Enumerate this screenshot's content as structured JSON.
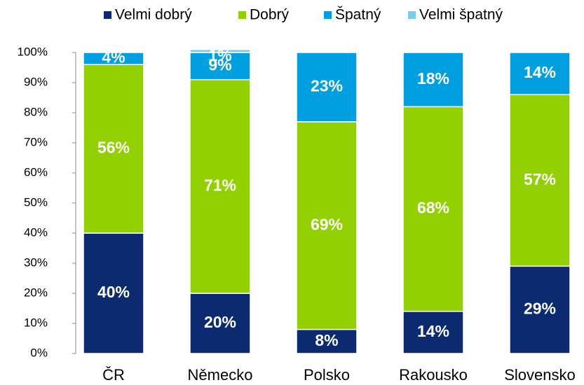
{
  "chart_data": {
    "type": "stacked_bar",
    "categories": [
      "ČR",
      "Německo",
      "Polsko",
      "Rakousko",
      "Slovensko"
    ],
    "series": [
      {
        "name": "Velmi dobrý",
        "color": "#0b2a70",
        "values": [
          40,
          20,
          8,
          14,
          29
        ],
        "value_labels": [
          "40%",
          "20%",
          "8%",
          "14%",
          "29%"
        ]
      },
      {
        "name": "Dobrý",
        "color": "#92d000",
        "values": [
          56,
          71,
          69,
          68,
          57
        ],
        "value_labels": [
          "56%",
          "71%",
          "69%",
          "68%",
          "57%"
        ]
      },
      {
        "name": "Špatný",
        "color": "#00a0e0",
        "values": [
          4,
          9,
          23,
          18,
          14
        ],
        "value_labels": [
          "4%",
          "9%",
          "23%",
          "18%",
          "14%"
        ]
      },
      {
        "name": "Velmi špatný",
        "color": "#7ccbea",
        "values": [
          0,
          1,
          0,
          0,
          0
        ],
        "value_labels": [
          null,
          "1%",
          null,
          null,
          null
        ]
      }
    ],
    "ylim": [
      0,
      100
    ],
    "yticks": [
      {
        "value": 0,
        "label": "0%"
      },
      {
        "value": 10,
        "label": "10%"
      },
      {
        "value": 20,
        "label": "20%"
      },
      {
        "value": 30,
        "label": "30%"
      },
      {
        "value": 40,
        "label": "40%"
      },
      {
        "value": 50,
        "label": "50%"
      },
      {
        "value": 60,
        "label": "60%"
      },
      {
        "value": 70,
        "label": "70%"
      },
      {
        "value": 80,
        "label": "80%"
      },
      {
        "value": 90,
        "label": "90%"
      },
      {
        "value": 100,
        "label": "100%"
      }
    ],
    "legend": "top"
  }
}
